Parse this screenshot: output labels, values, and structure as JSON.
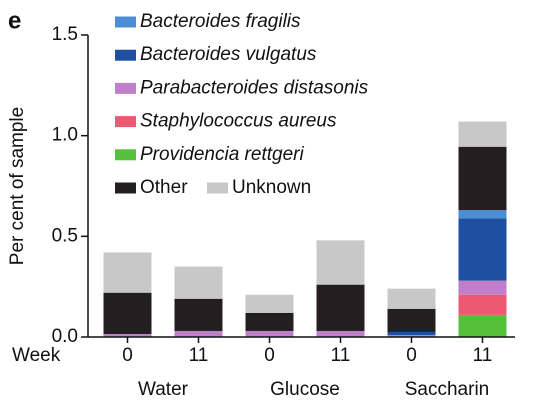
{
  "chart_data": {
    "type": "stacked-bar",
    "panel_label": "e",
    "y_label": "Per cent of sample",
    "x_label": "Week",
    "categories": [
      "0",
      "11",
      "0",
      "11",
      "0",
      "11"
    ],
    "groups": [
      {
        "name": "Water",
        "span": [
          0,
          1
        ]
      },
      {
        "name": "Glucose",
        "span": [
          2,
          3
        ]
      },
      {
        "name": "Saccharin",
        "span": [
          4,
          5
        ]
      }
    ],
    "ylim": [
      0,
      1.5
    ],
    "yticks": [
      {
        "value": 0,
        "label": "0.0"
      },
      0.5,
      {
        "value": 1,
        "label": "1.0"
      },
      1.5
    ],
    "series": [
      {
        "name": "Bacteroides fragilis",
        "color": "#4a8fd6",
        "italic": true,
        "values": [
          0,
          0,
          0,
          0,
          0,
          0.04
        ]
      },
      {
        "name": "Bacteroides vulgatus",
        "color": "#1f4fa0",
        "italic": true,
        "values": [
          0,
          0,
          0,
          0,
          0.015,
          0.31
        ]
      },
      {
        "name": "Parabacteroides distasonis",
        "color": "#c07fcb",
        "italic": true,
        "values": [
          0.015,
          0.03,
          0.03,
          0.03,
          0.01,
          0.07
        ]
      },
      {
        "name": "Staphylococcus aureus",
        "color": "#ec5a72",
        "italic": true,
        "values": [
          0,
          0,
          0,
          0,
          0,
          0.1
        ]
      },
      {
        "name": "Providencia rettgeri",
        "color": "#55c03c",
        "italic": true,
        "values": [
          0,
          0,
          0,
          0,
          0,
          0.11
        ]
      },
      {
        "name": "Other",
        "color": "#231f20",
        "italic": false,
        "values": [
          0.205,
          0.16,
          0.09,
          0.23,
          0.115,
          0.315
        ]
      },
      {
        "name": "Unknown",
        "color": "#c8c8c8",
        "italic": false,
        "values": [
          0.2,
          0.16,
          0.09,
          0.22,
          0.1,
          0.125
        ]
      }
    ],
    "stack_order": [
      4,
      3,
      2,
      1,
      0,
      5,
      6
    ]
  }
}
